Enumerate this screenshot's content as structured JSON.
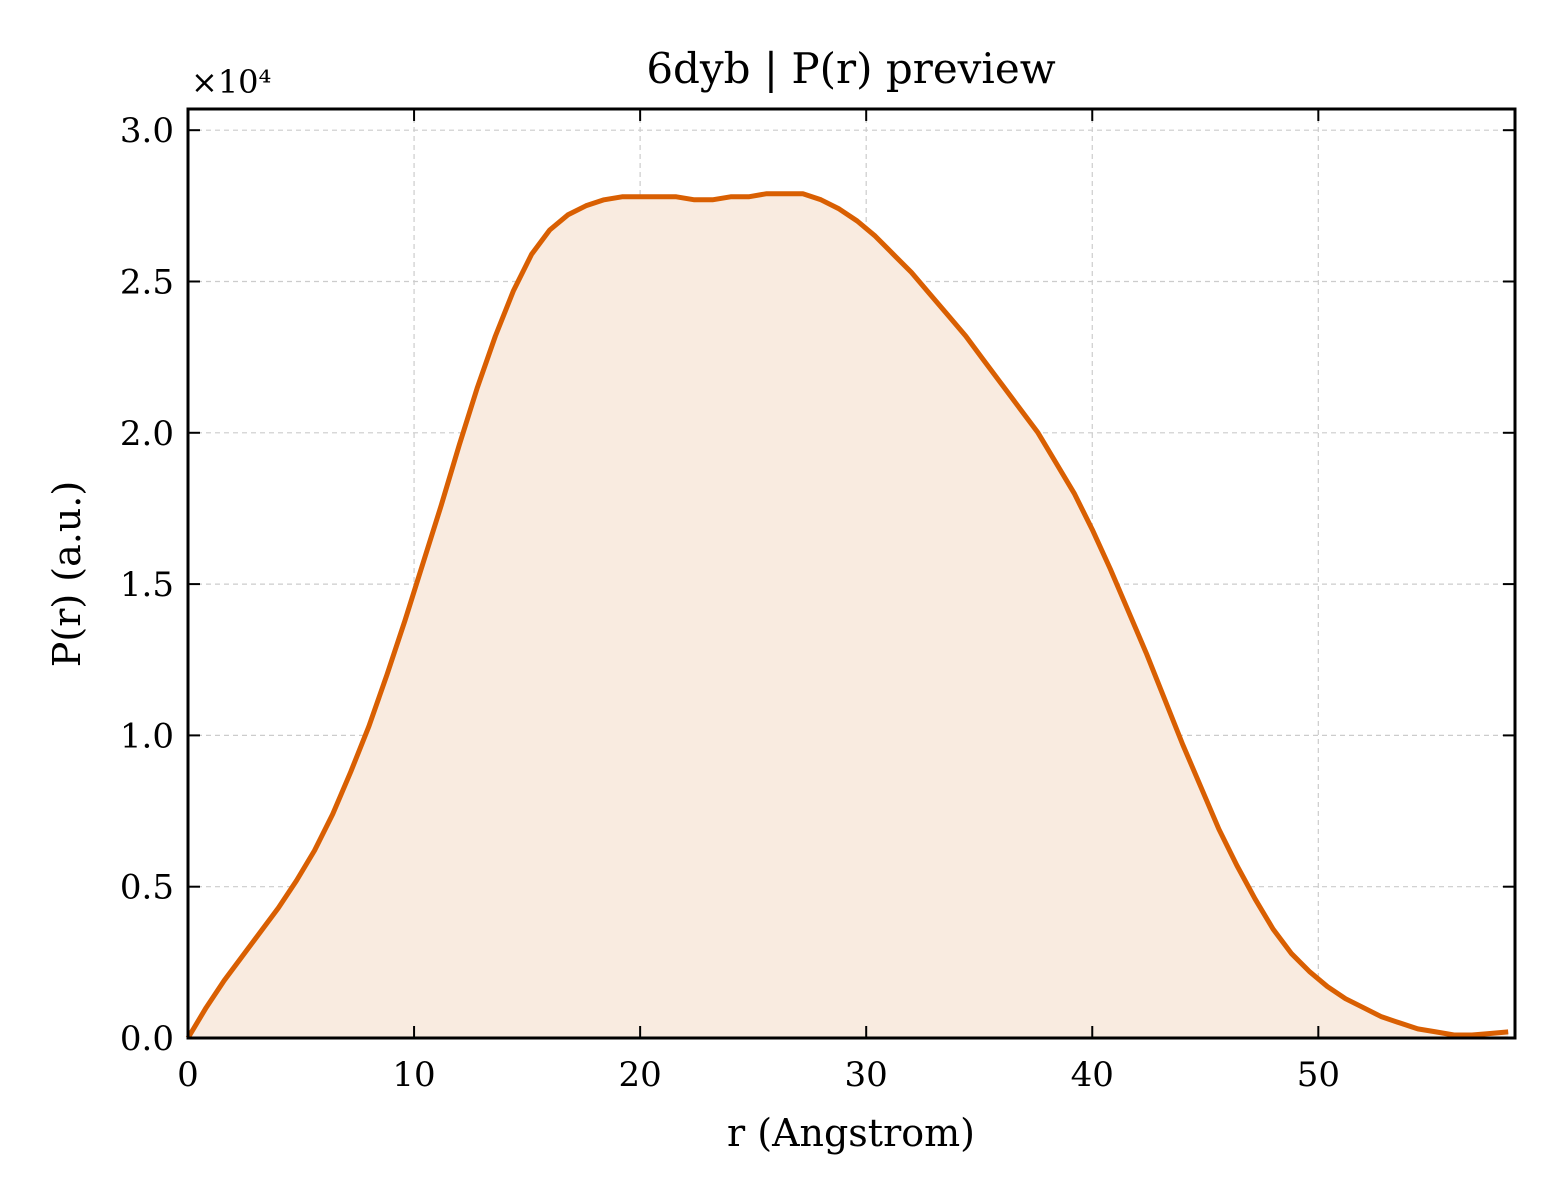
{
  "chart_data": {
    "type": "area",
    "title": "6dyb | P(r) preview",
    "xlabel": "r (Angstrom)",
    "ylabel": "P(r) (a.u.)",
    "y_multiplier_label": "×10⁴",
    "xlim": [
      0,
      58.7
    ],
    "ylim": [
      0,
      3.07
    ],
    "xticks": [
      0,
      10,
      20,
      30,
      40,
      50
    ],
    "xtick_labels": [
      "0",
      "10",
      "20",
      "30",
      "40",
      "50"
    ],
    "yticks": [
      0,
      0.5,
      1.0,
      1.5,
      2.0,
      2.5,
      3.0
    ],
    "ytick_labels": [
      "0.0",
      "0.5",
      "1.0",
      "1.5",
      "2.0",
      "2.5",
      "3.0"
    ],
    "grid": true,
    "line_color": "#d95f02",
    "fill_color": "#f9ebe0",
    "series": [
      {
        "x": [
          0,
          0.8,
          1.6,
          2.4,
          3.2,
          4.0,
          4.8,
          5.6,
          6.4,
          7.2,
          8.0,
          8.8,
          9.6,
          10.4,
          11.2,
          12.0,
          12.8,
          13.6,
          14.4,
          15.2,
          16.0,
          16.8,
          17.6,
          18.4,
          19.2,
          20.0,
          20.8,
          21.6,
          22.4,
          23.2,
          24.0,
          24.8,
          25.6,
          26.4,
          27.2,
          28.0,
          28.8,
          29.6,
          30.4,
          31.2,
          32.0,
          32.8,
          33.6,
          34.4,
          35.2,
          36.0,
          36.8,
          37.6,
          38.4,
          39.2,
          40.0,
          40.8,
          41.6,
          42.4,
          43.2,
          44.0,
          44.8,
          45.6,
          46.4,
          47.2,
          48.0,
          48.8,
          49.6,
          50.4,
          51.2,
          52.0,
          52.8,
          53.6,
          54.4,
          55.2,
          56.0,
          56.8,
          57.6,
          58.4
        ],
        "y": [
          0,
          0.1,
          0.19,
          0.27,
          0.35,
          0.43,
          0.52,
          0.62,
          0.74,
          0.88,
          1.03,
          1.2,
          1.38,
          1.57,
          1.76,
          1.96,
          2.15,
          2.32,
          2.47,
          2.59,
          2.67,
          2.72,
          2.75,
          2.77,
          2.78,
          2.78,
          2.78,
          2.78,
          2.77,
          2.77,
          2.78,
          2.78,
          2.79,
          2.79,
          2.79,
          2.77,
          2.74,
          2.7,
          2.65,
          2.59,
          2.53,
          2.46,
          2.39,
          2.32,
          2.24,
          2.16,
          2.08,
          2.0,
          1.9,
          1.8,
          1.68,
          1.55,
          1.41,
          1.27,
          1.12,
          0.97,
          0.83,
          0.69,
          0.57,
          0.46,
          0.36,
          0.28,
          0.22,
          0.17,
          0.13,
          0.1,
          0.07,
          0.05,
          0.03,
          0.02,
          0.01,
          0.01,
          0.015,
          0.02
        ]
      }
    ]
  }
}
